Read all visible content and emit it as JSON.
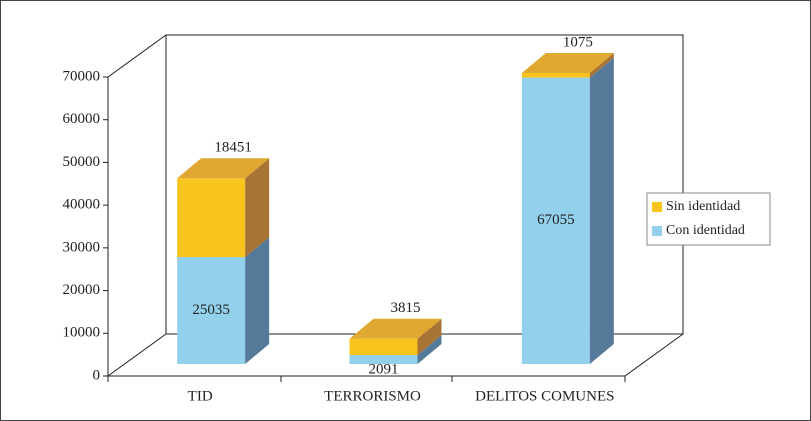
{
  "chart_data": {
    "type": "bar3d_stacked",
    "categories": [
      "TID",
      "TERRORISMO",
      "DELITOS COMUNES"
    ],
    "series": [
      {
        "name": "Con identidad",
        "color": "#92d0ec",
        "values": [
          25035,
          2091,
          67055
        ]
      },
      {
        "name": "Sin identidad",
        "color": "#f8c41d",
        "values": [
          18451,
          3815,
          1075
        ]
      }
    ],
    "ylim": [
      0,
      70000
    ],
    "yticks": [
      0,
      10000,
      20000,
      30000,
      40000,
      50000,
      60000,
      70000
    ],
    "legend": "right"
  }
}
